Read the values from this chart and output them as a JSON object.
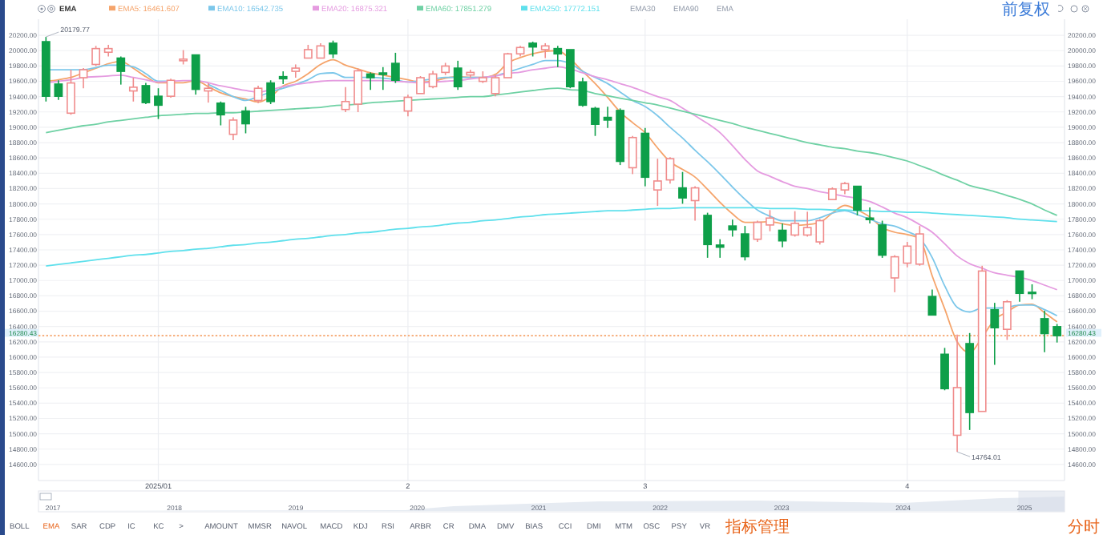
{
  "chart_data": {
    "type": "candlestick",
    "legend": "top left",
    "grid": true,
    "categories": [
      null,
      null,
      null,
      null,
      null,
      null,
      null,
      null,
      null,
      "2025/01",
      null,
      null,
      null,
      null,
      null,
      null,
      null,
      null,
      null,
      null,
      null,
      null,
      null,
      null,
      null,
      null,
      null,
      null,
      null,
      "2",
      null,
      null,
      null,
      null,
      null,
      null,
      null,
      null,
      null,
      null,
      null,
      null,
      null,
      null,
      null,
      null,
      null,
      null,
      "3",
      null,
      null,
      null,
      null,
      null,
      null,
      null,
      null,
      null,
      null,
      null,
      null,
      null,
      null,
      null,
      null,
      null,
      null,
      null,
      null,
      "4",
      null,
      null,
      null,
      null,
      null,
      null,
      null,
      null,
      null,
      null,
      null,
      null
    ],
    "colors": [
      "#0e9f49",
      "#0e9f49",
      "#f08c8c",
      "#f08c8c",
      "#f08c8c",
      "#f08c8c",
      "#0e9f49",
      "#f08c8c",
      "#0e9f49",
      "#0e9f49",
      "#f08c8c",
      "#f08c8c",
      "#0e9f49",
      "#f08c8c",
      "#0e9f49",
      "#f08c8c",
      "#0e9f49",
      "#f08c8c",
      "#0e9f49",
      "#0e9f49",
      "#f08c8c",
      "#f08c8c",
      "#f08c8c",
      "#0e9f49",
      "#f08c8c",
      "#f08c8c",
      "#0e9f49",
      "#0e9f49",
      "#0e9f49",
      "#f08c8c",
      "#f08c8c",
      "#f08c8c",
      "#f08c8c",
      "#0e9f49",
      "#f08c8c",
      "#f08c8c",
      "#f08c8c",
      "#f08c8c",
      "#f08c8c",
      "#0e9f49",
      "#f08c8c",
      "#0e9f49",
      "#0e9f49",
      "#0e9f49",
      "#0e9f49",
      "#0e9f49",
      "#0e9f49",
      "#f08c8c",
      "#0e9f49",
      "#f08c8c",
      "#f08c8c",
      "#0e9f49",
      "#f08c8c",
      "#0e9f49",
      "#0e9f49",
      "#0e9f49",
      "#0e9f49",
      "#f08c8c",
      "#f08c8c",
      "#0e9f49",
      "#f08c8c",
      "#f08c8c",
      "#f08c8c",
      "#f08c8c",
      "#f08c8c",
      "#0e9f49",
      "#0e9f49",
      "#0e9f49",
      "#f08c8c",
      "#f08c8c",
      "#f08c8c",
      "#0e9f49",
      "#0e9f49",
      "#f08c8c",
      "#0e9f49",
      "#f08c8c",
      "#0e9f49",
      "#f08c8c",
      "#0e9f49",
      "#0e9f49",
      "#0e9f49",
      "#0e9f49"
    ],
    "x2lim": [
      2016.88,
      2025.33
    ],
    "x2ticks": [
      2017,
      2018,
      2019,
      2020,
      2021,
      2022,
      2023,
      2024,
      2025
    ],
    "ylim": [
      14390,
      20410
    ],
    "yticks": [
      {
        "value": 14600,
        "label": "14600.00"
      },
      {
        "value": 14800,
        "label": "14800.00"
      },
      {
        "value": 15000,
        "label": "15000.00"
      },
      {
        "value": 15200,
        "label": "15200.00"
      },
      {
        "value": 15400,
        "label": "15400.00"
      },
      {
        "value": 15600,
        "label": "15600.00"
      },
      {
        "value": 15800,
        "label": "15800.00"
      },
      {
        "value": 16000,
        "label": "16000.00"
      },
      {
        "value": 16200,
        "label": "16200.00"
      },
      {
        "value": 16400,
        "label": "16400.00"
      },
      {
        "value": 16600,
        "label": "16600.00"
      },
      {
        "value": 16800,
        "label": "16800.00"
      },
      {
        "value": 17000,
        "label": "17000.00"
      },
      {
        "value": 17200,
        "label": "17200.00"
      },
      {
        "value": 17400,
        "label": "17400.00"
      },
      {
        "value": 17600,
        "label": "17600.00"
      },
      {
        "value": 17800,
        "label": "17800.00"
      },
      {
        "value": 18000,
        "label": "18000.00"
      },
      {
        "value": 18200,
        "label": "18200.00"
      },
      {
        "value": 18400,
        "label": "18400.00"
      },
      {
        "value": 18600,
        "label": "18600.00"
      },
      {
        "value": 18800,
        "label": "18800.00"
      },
      {
        "value": 19000,
        "label": "19000.00"
      },
      {
        "value": 19200,
        "label": "19200.00"
      },
      {
        "value": 19400,
        "label": "19400.00"
      },
      {
        "value": 19600,
        "label": "19600.00"
      },
      {
        "value": 19800,
        "label": "19800.00"
      },
      {
        "value": 20000,
        "label": "20000.00"
      },
      {
        "value": 20200,
        "label": "20200.00"
      }
    ],
    "y2lim": [
      14390,
      20410
    ],
    "y2ticks": [
      {
        "value": 14600,
        "label": "14600.00"
      },
      {
        "value": 14800,
        "label": "14800.00"
      },
      {
        "value": 15000,
        "label": "15000.00"
      },
      {
        "value": 15200,
        "label": "15200.00"
      },
      {
        "value": 15400,
        "label": "15400.00"
      },
      {
        "value": 15600,
        "label": "15600.00"
      },
      {
        "value": 15800,
        "label": "15800.00"
      },
      {
        "value": 16000,
        "label": "16000.00"
      },
      {
        "value": 16200,
        "label": "16200.00"
      },
      {
        "value": 16400,
        "label": "16400.00"
      },
      {
        "value": 16600,
        "label": "16600.00"
      },
      {
        "value": 16800,
        "label": "16800.00"
      },
      {
        "value": 17000,
        "label": "17000.00"
      },
      {
        "value": 17200,
        "label": "17200.00"
      },
      {
        "value": 17400,
        "label": "17400.00"
      },
      {
        "value": 17600,
        "label": "17600.00"
      },
      {
        "value": 17800,
        "label": "17800.00"
      },
      {
        "value": 18000,
        "label": "18000.00"
      },
      {
        "value": 18200,
        "label": "18200.00"
      },
      {
        "value": 18400,
        "label": "18400.00"
      },
      {
        "value": 18600,
        "label": "18600.00"
      },
      {
        "value": 18800,
        "label": "18800.00"
      },
      {
        "value": 19000,
        "label": "19000.00"
      },
      {
        "value": 19200,
        "label": "19200.00"
      },
      {
        "value": 19400,
        "label": "19400.00"
      },
      {
        "value": 19600,
        "label": "19600.00"
      },
      {
        "value": 19800,
        "label": "19800.00"
      },
      {
        "value": 20000,
        "label": "20000.00"
      },
      {
        "value": 20200,
        "label": "20200.00"
      }
    ],
    "ohlc": [
      [
        20117,
        20179.77,
        19336,
        19405
      ],
      [
        19564,
        19613,
        19357,
        19405
      ],
      [
        19184,
        19751,
        19163,
        19578
      ],
      [
        19647,
        19772,
        19509,
        19751
      ],
      [
        19820,
        20062,
        19799,
        20027
      ],
      [
        19979,
        20076,
        19924,
        20027
      ],
      [
        19903,
        19924,
        19557,
        19730
      ],
      [
        19474,
        19647,
        19336,
        19523
      ],
      [
        19543,
        19578,
        19302,
        19322
      ],
      [
        19405,
        19509,
        19108,
        19288
      ],
      [
        19405,
        19633,
        19385,
        19613
      ],
      [
        19868,
        20007,
        19820,
        19889
      ],
      [
        19944,
        19944,
        19426,
        19495
      ],
      [
        19474,
        19578,
        19322,
        19509
      ],
      [
        19315,
        19336,
        19025,
        19163
      ],
      [
        18908,
        19129,
        18831,
        19094
      ],
      [
        19212,
        19267,
        18921,
        19046
      ],
      [
        19350,
        19543,
        19315,
        19509
      ],
      [
        19578,
        19613,
        19302,
        19336
      ],
      [
        19661,
        19730,
        19564,
        19633
      ],
      [
        19730,
        19820,
        19647,
        19772
      ],
      [
        19903,
        20076,
        19903,
        20013
      ],
      [
        19903,
        20097,
        19903,
        20062
      ],
      [
        20097,
        20131,
        19903,
        19958
      ],
      [
        19232,
        19523,
        19198,
        19336
      ],
      [
        19302,
        19765,
        19198,
        19737
      ],
      [
        19695,
        19716,
        19488,
        19647
      ],
      [
        19709,
        19785,
        19488,
        19689
      ],
      [
        19834,
        19972,
        19578,
        19613
      ],
      [
        19212,
        19426,
        19143,
        19391
      ],
      [
        19440,
        19668,
        19440,
        19647
      ],
      [
        19530,
        19737,
        19509,
        19695
      ],
      [
        19716,
        19841,
        19682,
        19799
      ],
      [
        19772,
        19868,
        19488,
        19530
      ],
      [
        19682,
        19751,
        19647,
        19716
      ],
      [
        19599,
        19730,
        19578,
        19647
      ],
      [
        19440,
        19682,
        19405,
        19647
      ],
      [
        19647,
        19972,
        19647,
        19958
      ],
      [
        19958,
        20062,
        19924,
        20041
      ],
      [
        20097,
        20117,
        19924,
        20048
      ],
      [
        20013,
        20097,
        19903,
        20062
      ],
      [
        20027,
        20062,
        19785,
        19958
      ],
      [
        20013,
        20013,
        19509,
        19530
      ],
      [
        19592,
        19647,
        19267,
        19288
      ],
      [
        19246,
        19267,
        18887,
        19039
      ],
      [
        19129,
        19267,
        18991,
        19094
      ],
      [
        19219,
        19246,
        18507,
        18555
      ],
      [
        18472,
        18887,
        18389,
        18866
      ],
      [
        18921,
        18991,
        18230,
        18348
      ],
      [
        18182,
        18590,
        17974,
        18299
      ],
      [
        18313,
        18610,
        18265,
        18590
      ],
      [
        18209,
        18417,
        18002,
        18078
      ],
      [
        18043,
        18230,
        17781,
        18209
      ],
      [
        17850,
        17885,
        17297,
        17470
      ],
      [
        17463,
        17539,
        17297,
        17435
      ],
      [
        17712,
        17795,
        17573,
        17663
      ],
      [
        17608,
        17712,
        17262,
        17311
      ],
      [
        17539,
        17781,
        17504,
        17760
      ],
      [
        17725,
        17919,
        17643,
        17815
      ],
      [
        17656,
        17746,
        17435,
        17518
      ],
      [
        17594,
        17905,
        17573,
        17746
      ],
      [
        17594,
        17898,
        17573,
        17691
      ],
      [
        17504,
        17802,
        17470,
        17781
      ],
      [
        18057,
        18216,
        18057,
        18195
      ],
      [
        18182,
        18285,
        18127,
        18265
      ],
      [
        18230,
        18230,
        17850,
        17919
      ],
      [
        17815,
        17954,
        17746,
        17795
      ],
      [
        17725,
        17781,
        17296,
        17331
      ],
      [
        17034,
        17331,
        16847,
        17310
      ],
      [
        17227,
        17504,
        17172,
        17449
      ],
      [
        17214,
        17712,
        17193,
        17608
      ],
      [
        16792,
        16882,
        16550,
        16550
      ],
      [
        16038,
        16121,
        15568,
        15589
      ],
      [
        14981,
        16294,
        14764.01,
        15603
      ],
      [
        16177,
        16315,
        15050,
        15278
      ],
      [
        15292,
        17193,
        15292,
        17124
      ],
      [
        16619,
        16709,
        15900,
        16384
      ],
      [
        16363,
        16744,
        16225,
        16723
      ],
      [
        17124,
        17124,
        16723,
        16833
      ],
      [
        16847,
        16951,
        16757,
        16833
      ],
      [
        16502,
        16605,
        16066,
        16308
      ],
      [
        16398,
        16433,
        16191,
        16280.43
      ]
    ],
    "series": [
      {
        "type": "line",
        "name": "EMA5: 16461.607",
        "color": "#f5a46b",
        "values": [
          19600,
          19620,
          19650,
          19710,
          19770,
          19830,
          19860,
          19770,
          19660,
          19580,
          19580,
          19580,
          19610,
          19530,
          19450,
          19400,
          19370,
          19330,
          19400,
          19540,
          19600,
          19700,
          19820,
          19880,
          19810,
          19760,
          19710,
          19680,
          19650,
          19620,
          19590,
          19600,
          19640,
          19660,
          19650,
          19650,
          19690,
          19840,
          19910,
          19960,
          19990,
          20000,
          19890,
          19730,
          19570,
          19390,
          19200,
          19060,
          18930,
          18730,
          18550,
          18450,
          18350,
          18190,
          18020,
          17870,
          17760,
          17760,
          17770,
          17740,
          17720,
          17730,
          17760,
          17880,
          17980,
          17920,
          17830,
          17690,
          17630,
          17600,
          17540,
          17060,
          16630,
          16200,
          16060,
          16260,
          16490,
          16590,
          16680,
          16690,
          16580,
          16460
        ]
      },
      {
        "type": "line",
        "name": "EMA10: 16542.735",
        "color": "#7cc7ea",
        "values": [
          19750,
          19750,
          19750,
          19750,
          19780,
          19810,
          19810,
          19790,
          19700,
          19600,
          19600,
          null,
          null,
          19560,
          19480,
          19400,
          19350,
          19400,
          19460,
          19510,
          19560,
          19620,
          19700,
          19710,
          19650,
          19650,
          19650,
          19640,
          19620,
          19590,
          19610,
          19630,
          19650,
          19650,
          19650,
          19650,
          19670,
          19720,
          19770,
          19820,
          19870,
          19870,
          19830,
          19730,
          19650,
          19570,
          19460,
          19350,
          19270,
          19150,
          19000,
          18860,
          18700,
          18550,
          18390,
          18220,
          18060,
          17920,
          17840,
          17780,
          17780,
          17780,
          17820,
          17880,
          17910,
          17860,
          17800,
          17740,
          17710,
          17640,
          17550,
          17300,
          16930,
          16650,
          16590,
          16640,
          16640,
          16650,
          16680,
          16680,
          16620,
          16540
        ]
      },
      {
        "type": "line",
        "name": "EMA20: 16875.321",
        "color": "#e59be0",
        "values": [
          19580,
          19600,
          19620,
          19650,
          19660,
          19670,
          19680,
          19650,
          19620,
          19590,
          19600,
          19610,
          19610,
          19580,
          19540,
          19510,
          19480,
          19460,
          19490,
          19530,
          19560,
          19580,
          19600,
          19610,
          19610,
          19610,
          19610,
          19610,
          19600,
          19590,
          19580,
          19590,
          19600,
          19610,
          19630,
          19650,
          19670,
          19700,
          19720,
          19750,
          19770,
          19790,
          19760,
          19710,
          19660,
          19620,
          19570,
          19520,
          19460,
          19400,
          19350,
          19250,
          19150,
          19050,
          18930,
          18760,
          18580,
          18430,
          18360,
          18290,
          18230,
          18200,
          18160,
          18130,
          18100,
          18070,
          18030,
          17960,
          17880,
          17820,
          17730,
          17630,
          17480,
          17320,
          17220,
          17160,
          17100,
          17070,
          17040,
          17000,
          16940,
          16880
        ]
      },
      {
        "type": "line",
        "name": "EMA60: 17851.279",
        "color": "#6fd1a4",
        "values": [
          18930,
          18960,
          18990,
          19020,
          19040,
          19070,
          19090,
          19110,
          19130,
          19150,
          19160,
          19170,
          19180,
          19180,
          19190,
          19190,
          19200,
          19210,
          19220,
          19230,
          19240,
          19250,
          19260,
          19280,
          19290,
          19300,
          19320,
          19330,
          19340,
          19350,
          19360,
          19370,
          19380,
          19390,
          19400,
          19400,
          19420,
          19440,
          19460,
          19480,
          19500,
          19510,
          19490,
          19480,
          19440,
          19410,
          19380,
          19350,
          19320,
          19290,
          19250,
          19210,
          19170,
          19130,
          19090,
          19050,
          19000,
          18960,
          18920,
          18880,
          18840,
          18800,
          18770,
          18740,
          18720,
          18690,
          18670,
          18640,
          18600,
          18560,
          18500,
          18440,
          18370,
          18310,
          18240,
          18200,
          18160,
          18110,
          18060,
          18000,
          17920,
          17850
        ]
      },
      {
        "type": "line",
        "name": "EMA250: 17772.151",
        "color": "#5fe0ec",
        "values": [
          17190,
          17210,
          17230,
          17250,
          17270,
          17290,
          17310,
          17330,
          17340,
          17360,
          17380,
          17390,
          17410,
          17420,
          17440,
          17460,
          17470,
          17490,
          17500,
          17520,
          17540,
          17550,
          17570,
          17590,
          17600,
          17620,
          17630,
          17650,
          17670,
          17680,
          17700,
          17710,
          17730,
          17750,
          17760,
          17780,
          17790,
          17810,
          17830,
          17840,
          17860,
          17870,
          17880,
          17890,
          17900,
          17910,
          17910,
          17920,
          17930,
          17940,
          17940,
          17950,
          17950,
          17950,
          17950,
          17950,
          17950,
          17950,
          17940,
          17940,
          17940,
          17930,
          17930,
          17920,
          17920,
          17910,
          17910,
          17900,
          17900,
          17890,
          17890,
          17880,
          17870,
          17860,
          17850,
          17840,
          17830,
          17820,
          17800,
          17790,
          17780,
          17770
        ]
      }
    ],
    "ref_lines": [
      {
        "axis": "y",
        "value": 16280.43,
        "label": "16280.43",
        "color": "#f5a46b",
        "line_style": "dotted"
      }
    ],
    "annotations": [
      "20179.77",
      "14764.01",
      "EMA",
      "前复权",
      "EMA30",
      "EMA90",
      "EMA",
      "BOLL",
      "EMA",
      "SAR",
      "CDP",
      "IC",
      "KC",
      ">",
      "AMOUNT",
      "MMSR",
      "NAVOL",
      "MACD",
      "KDJ",
      "RSI",
      "ARBR",
      "CR",
      "DMA",
      "DMV",
      "BIAS",
      "CCI",
      "DMI",
      "MTM",
      "OSC",
      "PSY",
      "VR",
      "指标管理",
      "分时"
    ]
  }
}
